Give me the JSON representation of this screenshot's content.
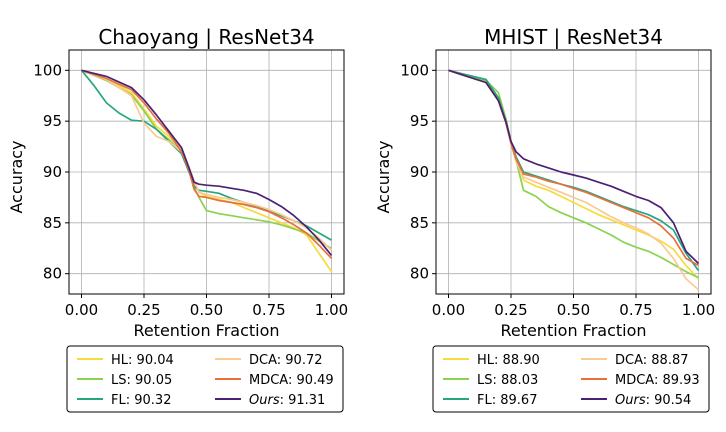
{
  "chart_data": [
    {
      "type": "line",
      "title": "Chaoyang | ResNet34",
      "xlabel": "Retention Fraction",
      "ylabel": "Accuracy",
      "xlim": [
        -0.05,
        1.05
      ],
      "ylim": [
        78,
        102
      ],
      "xticks": [
        "0.00",
        "0.25",
        "0.50",
        "0.75",
        "1.00"
      ],
      "yticks": [
        "80",
        "85",
        "90",
        "95",
        "100"
      ],
      "grid": true,
      "legend_position": "below",
      "series": [
        {
          "name": "HL",
          "score": "90.04",
          "color": "#f5dc3c",
          "x": [
            0.0,
            0.1,
            0.2,
            0.25,
            0.3,
            0.35,
            0.4,
            0.43,
            0.45,
            0.47,
            0.5,
            0.55,
            0.6,
            0.65,
            0.7,
            0.75,
            0.8,
            0.85,
            0.9,
            0.95,
            1.0
          ],
          "y": [
            100,
            99.2,
            97.8,
            96.2,
            94.5,
            93.5,
            92.2,
            90.5,
            89.0,
            88.0,
            87.6,
            87.3,
            87.0,
            86.5,
            86.0,
            85.5,
            85.0,
            84.5,
            83.8,
            82.0,
            80.2
          ]
        },
        {
          "name": "LS",
          "score": "90.05",
          "color": "#8bd24e",
          "x": [
            0.0,
            0.1,
            0.2,
            0.25,
            0.3,
            0.35,
            0.4,
            0.43,
            0.45,
            0.47,
            0.5,
            0.55,
            0.6,
            0.65,
            0.7,
            0.75,
            0.8,
            0.85,
            0.9,
            0.95,
            1.0
          ],
          "y": [
            100,
            99.0,
            97.6,
            96.0,
            94.2,
            93.2,
            92.0,
            90.2,
            88.5,
            87.5,
            86.2,
            85.9,
            85.7,
            85.5,
            85.3,
            85.1,
            84.8,
            84.4,
            84.0,
            83.2,
            82.5
          ]
        },
        {
          "name": "FL",
          "score": "90.32",
          "color": "#26a681",
          "x": [
            0.0,
            0.05,
            0.1,
            0.15,
            0.2,
            0.25,
            0.3,
            0.35,
            0.4,
            0.43,
            0.45,
            0.47,
            0.5,
            0.55,
            0.6,
            0.65,
            0.7,
            0.75,
            0.8,
            0.85,
            0.9,
            0.95,
            1.0
          ],
          "y": [
            100,
            98.5,
            96.8,
            95.8,
            95.1,
            95.0,
            94.2,
            93.0,
            91.8,
            90.0,
            88.6,
            88.2,
            88.1,
            87.9,
            87.4,
            87.0,
            86.6,
            86.2,
            85.7,
            85.2,
            84.7,
            84.0,
            83.3
          ]
        },
        {
          "name": "DCA",
          "score": "90.72",
          "color": "#fbc992",
          "x": [
            0.0,
            0.1,
            0.2,
            0.25,
            0.3,
            0.35,
            0.4,
            0.43,
            0.45,
            0.47,
            0.5,
            0.55,
            0.6,
            0.65,
            0.7,
            0.75,
            0.8,
            0.85,
            0.9,
            0.95,
            1.0
          ],
          "y": [
            100,
            99.1,
            97.5,
            94.8,
            93.5,
            93.0,
            92.0,
            90.5,
            89.2,
            88.0,
            87.8,
            87.5,
            87.3,
            87.0,
            86.7,
            86.3,
            85.8,
            85.2,
            84.5,
            83.5,
            82.3
          ]
        },
        {
          "name": "MDCA",
          "score": "90.49",
          "color": "#e8703a",
          "x": [
            0.0,
            0.1,
            0.2,
            0.25,
            0.3,
            0.35,
            0.4,
            0.43,
            0.45,
            0.47,
            0.5,
            0.55,
            0.6,
            0.65,
            0.7,
            0.75,
            0.8,
            0.85,
            0.9,
            0.95,
            1.0
          ],
          "y": [
            100,
            99.2,
            98.1,
            96.8,
            95.2,
            93.8,
            92.0,
            90.2,
            88.3,
            87.6,
            87.5,
            87.2,
            87.0,
            86.8,
            86.5,
            86.1,
            85.5,
            84.8,
            84.0,
            82.8,
            81.5
          ]
        },
        {
          "name": "Ours",
          "score": "91.31",
          "color": "#4b2176",
          "italic": true,
          "x": [
            0.0,
            0.1,
            0.2,
            0.25,
            0.3,
            0.35,
            0.4,
            0.43,
            0.45,
            0.47,
            0.5,
            0.55,
            0.6,
            0.65,
            0.7,
            0.75,
            0.8,
            0.85,
            0.9,
            0.95,
            1.0
          ],
          "y": [
            100,
            99.4,
            98.3,
            97.1,
            95.6,
            94.0,
            92.4,
            90.4,
            89.0,
            88.8,
            88.7,
            88.6,
            88.4,
            88.2,
            87.9,
            87.3,
            86.6,
            85.7,
            84.6,
            83.3,
            81.8
          ]
        }
      ]
    },
    {
      "type": "line",
      "title": "MHIST | ResNet34",
      "xlabel": "Retention Fraction",
      "ylabel": "Accuracy",
      "xlim": [
        -0.05,
        1.05
      ],
      "ylim": [
        78,
        102
      ],
      "xticks": [
        "0.00",
        "0.25",
        "0.50",
        "0.75",
        "1.00"
      ],
      "yticks": [
        "80",
        "85",
        "90",
        "95",
        "100"
      ],
      "grid": true,
      "legend_position": "below",
      "series": [
        {
          "name": "HL",
          "score": "88.90",
          "color": "#f5dc3c",
          "x": [
            0.0,
            0.05,
            0.1,
            0.15,
            0.2,
            0.23,
            0.25,
            0.27,
            0.3,
            0.35,
            0.4,
            0.45,
            0.5,
            0.55,
            0.6,
            0.65,
            0.7,
            0.75,
            0.8,
            0.85,
            0.9,
            0.95,
            1.0
          ],
          "y": [
            100,
            99.6,
            99.2,
            98.8,
            97.2,
            95.0,
            93.0,
            91.5,
            89.2,
            88.6,
            88.2,
            87.6,
            87.0,
            86.4,
            85.8,
            85.3,
            84.8,
            84.3,
            83.8,
            83.2,
            82.4,
            80.8,
            79.5
          ]
        },
        {
          "name": "LS",
          "score": "88.03",
          "color": "#8bd24e",
          "x": [
            0.0,
            0.05,
            0.1,
            0.15,
            0.2,
            0.23,
            0.25,
            0.27,
            0.3,
            0.35,
            0.4,
            0.45,
            0.5,
            0.55,
            0.6,
            0.65,
            0.7,
            0.75,
            0.8,
            0.85,
            0.9,
            0.95,
            1.0
          ],
          "y": [
            100,
            99.6,
            99.3,
            99.0,
            97.8,
            95.2,
            93.0,
            91.2,
            88.2,
            87.6,
            86.6,
            86.0,
            85.5,
            85.0,
            84.4,
            83.8,
            83.1,
            82.6,
            82.2,
            81.6,
            80.9,
            80.2,
            79.6
          ]
        },
        {
          "name": "FL",
          "score": "89.67",
          "color": "#26a681",
          "x": [
            0.0,
            0.05,
            0.1,
            0.15,
            0.2,
            0.23,
            0.25,
            0.27,
            0.3,
            0.35,
            0.4,
            0.45,
            0.5,
            0.55,
            0.6,
            0.65,
            0.7,
            0.75,
            0.8,
            0.85,
            0.9,
            0.95,
            1.0
          ],
          "y": [
            100,
            99.7,
            99.4,
            99.1,
            97.3,
            95.0,
            93.0,
            91.5,
            90.0,
            89.6,
            89.2,
            88.8,
            88.5,
            88.1,
            87.6,
            87.1,
            86.6,
            86.2,
            85.8,
            85.2,
            84.3,
            82.0,
            80.3
          ]
        },
        {
          "name": "DCA",
          "score": "88.87",
          "color": "#fbc992",
          "x": [
            0.0,
            0.05,
            0.1,
            0.15,
            0.2,
            0.23,
            0.25,
            0.27,
            0.3,
            0.35,
            0.4,
            0.45,
            0.5,
            0.55,
            0.6,
            0.65,
            0.7,
            0.75,
            0.8,
            0.85,
            0.9,
            0.95,
            1.0
          ],
          "y": [
            100,
            99.6,
            99.2,
            98.8,
            97.0,
            94.8,
            92.8,
            91.0,
            89.5,
            89.0,
            88.5,
            88.0,
            87.5,
            87.0,
            86.3,
            85.6,
            85.0,
            84.5,
            83.9,
            83.0,
            81.5,
            79.5,
            78.4
          ]
        },
        {
          "name": "MDCA",
          "score": "89.93",
          "color": "#e8703a",
          "x": [
            0.0,
            0.05,
            0.1,
            0.15,
            0.2,
            0.23,
            0.25,
            0.27,
            0.3,
            0.35,
            0.4,
            0.45,
            0.5,
            0.55,
            0.6,
            0.65,
            0.7,
            0.75,
            0.8,
            0.85,
            0.9,
            0.95,
            1.0
          ],
          "y": [
            100,
            99.6,
            99.2,
            98.8,
            97.0,
            94.8,
            92.8,
            91.3,
            89.8,
            89.5,
            89.1,
            88.8,
            88.4,
            88.0,
            87.5,
            87.0,
            86.5,
            86.0,
            85.5,
            84.7,
            83.5,
            81.5,
            80.8
          ]
        },
        {
          "name": "Ours",
          "score": "90.54",
          "color": "#4b2176",
          "italic": true,
          "x": [
            0.0,
            0.05,
            0.1,
            0.15,
            0.2,
            0.23,
            0.25,
            0.27,
            0.3,
            0.35,
            0.4,
            0.45,
            0.5,
            0.55,
            0.6,
            0.65,
            0.7,
            0.75,
            0.8,
            0.85,
            0.9,
            0.95,
            1.0
          ],
          "y": [
            100,
            99.6,
            99.2,
            98.8,
            97.0,
            94.9,
            93.0,
            92.0,
            91.3,
            90.8,
            90.4,
            90.0,
            89.7,
            89.4,
            89.0,
            88.6,
            88.1,
            87.6,
            87.2,
            86.5,
            85.0,
            82.2,
            81.0
          ]
        }
      ]
    }
  ]
}
